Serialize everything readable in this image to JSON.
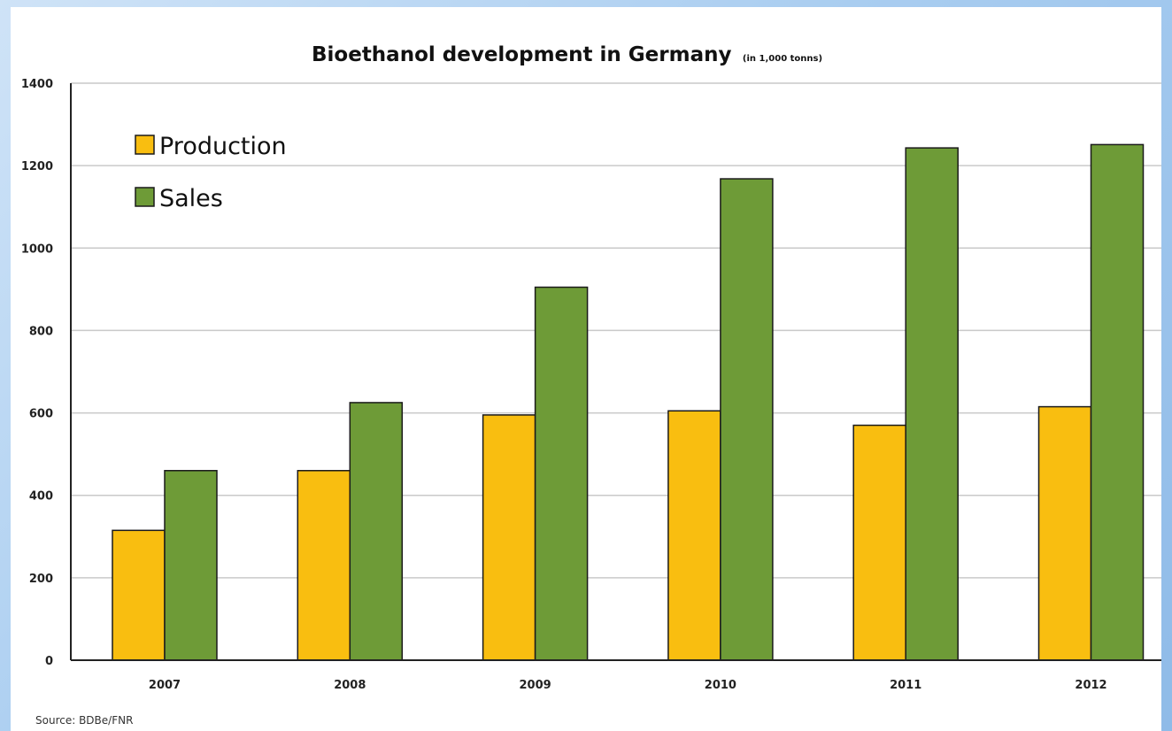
{
  "chart_data": {
    "type": "bar",
    "title": "Bioethanol development in Germany",
    "title_unit": "(in 1,000 tonns)",
    "categories": [
      "2007",
      "2008",
      "2009",
      "2010",
      "2011",
      "2012"
    ],
    "series": [
      {
        "name": "Production",
        "color": "#F9BE10",
        "values": [
          315,
          460,
          595,
          605,
          570,
          615
        ]
      },
      {
        "name": "Sales",
        "color": "#6E9B37",
        "values": [
          460,
          625,
          905,
          1168,
          1243,
          1251
        ]
      }
    ],
    "yticks": [
      "0",
      "200",
      "400",
      "600",
      "800",
      "1000",
      "1200",
      "1400"
    ],
    "ylim": [
      0,
      1400
    ],
    "grid": true,
    "legend_position": "top-left",
    "source": "Source: BDBe/FNR"
  }
}
